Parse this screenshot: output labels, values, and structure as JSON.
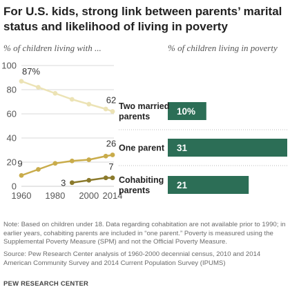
{
  "title": "For U.S. kids, strong link between parents’ marital status and likelihood of living in poverty",
  "note": "Note: Based on children under 18. Data regarding cohabitation are not available prior to 1990; in earlier years, cohabiting parents are included in “one parent.” Poverty is measured using the Supplemental Poverty Measure (SPM) and not the Official Poverty Measure.",
  "source": "Source: Pew Research Center analysis of 1960-2000 decennial census, 2010 and 2014 American Community Survey and 2014 Current Population Survey (IPUMS)",
  "brand": "PEW RESEARCH CENTER",
  "colors": {
    "two_married": "#ece3b5",
    "one_parent": "#c9ac4b",
    "cohabiting": "#8b7a2c",
    "bar": "#2c6e56",
    "grid": "#cccccc"
  },
  "chart_data": [
    {
      "type": "line",
      "subtitle": "% of children living with ...",
      "x": [
        1960,
        1970,
        1980,
        1990,
        2000,
        2010,
        2014
      ],
      "xticks": [
        1960,
        1980,
        2000,
        2014
      ],
      "yticks": [
        0,
        20,
        40,
        60,
        80,
        100
      ],
      "ylim": [
        0,
        100
      ],
      "grid": true,
      "series": [
        {
          "name": "Two married parents",
          "x": [
            1960,
            1970,
            1980,
            1990,
            2000,
            2010,
            2014
          ],
          "values": [
            87,
            82,
            77,
            72,
            68,
            64,
            62
          ],
          "labels": [
            {
              "x": 1960,
              "text": "87%"
            },
            {
              "x": 2014,
              "text": "62"
            }
          ]
        },
        {
          "name": "One parent",
          "x": [
            1960,
            1970,
            1980,
            1990,
            2000,
            2010,
            2014
          ],
          "values": [
            9,
            14,
            19,
            21,
            22,
            25,
            26
          ],
          "labels": [
            {
              "x": 1960,
              "text": "9"
            },
            {
              "x": 2014,
              "text": "26"
            }
          ]
        },
        {
          "name": "Cohabiting parents",
          "x": [
            1990,
            2000,
            2010,
            2014
          ],
          "values": [
            3,
            5,
            7,
            7
          ],
          "labels": [
            {
              "x": 1990,
              "text": "3"
            },
            {
              "x": 2014,
              "text": "7"
            }
          ]
        }
      ]
    },
    {
      "type": "bar",
      "subtitle": "% of children living in poverty",
      "categories": [
        "Two married parents",
        "One parent",
        "Cohabiting parents"
      ],
      "category_lines": [
        [
          "Two married",
          "parents"
        ],
        [
          "One parent"
        ],
        [
          "Cohabiting",
          "parents"
        ]
      ],
      "values": [
        10,
        31,
        21
      ],
      "value_labels": [
        "10%",
        "31",
        "21"
      ]
    }
  ]
}
